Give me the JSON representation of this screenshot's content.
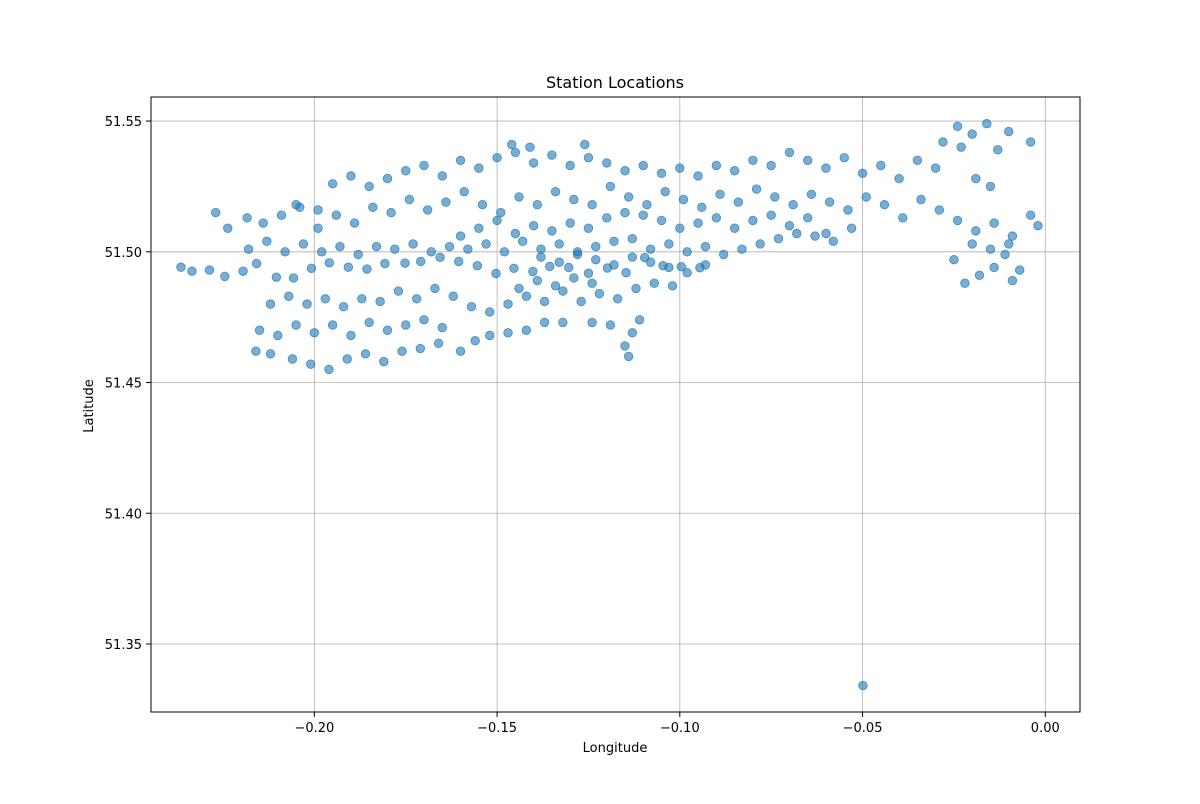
{
  "chart_data": {
    "type": "scatter",
    "title": "Station Locations",
    "xlabel": "Longitude",
    "ylabel": "Latitude",
    "xlim": [
      -0.2447,
      0.0095
    ],
    "ylim": [
      51.324,
      51.5592
    ],
    "xticks": [
      -0.2,
      -0.15,
      -0.1,
      -0.05,
      0.0
    ],
    "xtick_labels": [
      "−0.20",
      "−0.15",
      "−0.10",
      "−0.05",
      "0.00"
    ],
    "yticks": [
      51.35,
      51.4,
      51.45,
      51.5,
      51.55
    ],
    "ytick_labels": [
      "51.35",
      "51.40",
      "51.45",
      "51.50",
      "51.55"
    ],
    "grid": true,
    "marker_color": "#1f77b4",
    "marker_alpha": 0.6,
    "points": [
      [
        -0.0499,
        51.3341
      ],
      [
        -0.2365,
        51.4941
      ],
      [
        -0.2335,
        51.4926
      ],
      [
        -0.2287,
        51.493
      ],
      [
        -0.2245,
        51.4906
      ],
      [
        -0.2195,
        51.4926
      ],
      [
        -0.2158,
        51.4955
      ],
      [
        -0.2104,
        51.4903
      ],
      [
        -0.2057,
        51.49
      ],
      [
        -0.2008,
        51.4937
      ],
      [
        -0.1959,
        51.4958
      ],
      [
        -0.1907,
        51.4941
      ],
      [
        -0.1856,
        51.4934
      ],
      [
        -0.1807,
        51.4955
      ],
      [
        -0.1752,
        51.4957
      ],
      [
        -0.1709,
        51.4963
      ],
      [
        -0.1656,
        51.4979
      ],
      [
        -0.1605,
        51.4963
      ],
      [
        -0.1554,
        51.4947
      ],
      [
        -0.1503,
        51.4917
      ],
      [
        -0.1454,
        51.4937
      ],
      [
        -0.1402,
        51.4925
      ],
      [
        -0.1356,
        51.4944
      ],
      [
        -0.1304,
        51.494
      ],
      [
        -0.125,
        51.4918
      ],
      [
        -0.1198,
        51.4938
      ],
      [
        -0.1147,
        51.492
      ],
      [
        -0.1096,
        51.4978
      ],
      [
        -0.1046,
        51.4947
      ],
      [
        -0.0996,
        51.4943
      ],
      [
        -0.0945,
        51.4939
      ],
      [
        -0.227,
        51.515
      ],
      [
        -0.2237,
        51.509
      ],
      [
        -0.2184,
        51.513
      ],
      [
        -0.214,
        51.511
      ],
      [
        -0.209,
        51.514
      ],
      [
        -0.204,
        51.517
      ],
      [
        -0.199,
        51.509
      ],
      [
        -0.194,
        51.514
      ],
      [
        -0.189,
        51.511
      ],
      [
        -0.184,
        51.517
      ],
      [
        -0.179,
        51.515
      ],
      [
        -0.174,
        51.52
      ],
      [
        -0.169,
        51.516
      ],
      [
        -0.164,
        51.519
      ],
      [
        -0.159,
        51.523
      ],
      [
        -0.154,
        51.518
      ],
      [
        -0.149,
        51.515
      ],
      [
        -0.144,
        51.521
      ],
      [
        -0.139,
        51.518
      ],
      [
        -0.134,
        51.523
      ],
      [
        -0.129,
        51.52
      ],
      [
        -0.124,
        51.518
      ],
      [
        -0.119,
        51.525
      ],
      [
        -0.114,
        51.521
      ],
      [
        -0.109,
        51.518
      ],
      [
        -0.104,
        51.523
      ],
      [
        -0.099,
        51.52
      ],
      [
        -0.094,
        51.517
      ],
      [
        -0.089,
        51.522
      ],
      [
        -0.084,
        51.519
      ],
      [
        -0.079,
        51.524
      ],
      [
        -0.074,
        51.521
      ],
      [
        -0.069,
        51.518
      ],
      [
        -0.064,
        51.522
      ],
      [
        -0.059,
        51.519
      ],
      [
        -0.054,
        51.516
      ],
      [
        -0.049,
        51.521
      ],
      [
        -0.044,
        51.518
      ],
      [
        -0.039,
        51.513
      ],
      [
        -0.034,
        51.52
      ],
      [
        -0.029,
        51.516
      ],
      [
        -0.024,
        51.512
      ],
      [
        -0.019,
        51.508
      ],
      [
        -0.014,
        51.511
      ],
      [
        -0.009,
        51.506
      ],
      [
        -0.004,
        51.514
      ],
      [
        -0.002,
        51.51
      ],
      [
        -0.216,
        51.462
      ],
      [
        -0.212,
        51.461
      ],
      [
        -0.206,
        51.459
      ],
      [
        -0.201,
        51.457
      ],
      [
        -0.196,
        51.455
      ],
      [
        -0.191,
        51.459
      ],
      [
        -0.186,
        51.461
      ],
      [
        -0.181,
        51.458
      ],
      [
        -0.176,
        51.462
      ],
      [
        -0.171,
        51.463
      ],
      [
        -0.166,
        51.465
      ],
      [
        -0.16,
        51.462
      ],
      [
        -0.156,
        51.466
      ],
      [
        -0.152,
        51.468
      ],
      [
        -0.147,
        51.469
      ],
      [
        -0.142,
        51.47
      ],
      [
        -0.137,
        51.473
      ],
      [
        -0.132,
        51.473
      ],
      [
        -0.124,
        51.473
      ],
      [
        -0.119,
        51.472
      ],
      [
        -0.115,
        51.464
      ],
      [
        -0.114,
        51.46
      ],
      [
        -0.113,
        51.469
      ],
      [
        -0.111,
        51.474
      ],
      [
        -0.215,
        51.47
      ],
      [
        -0.21,
        51.468
      ],
      [
        -0.205,
        51.472
      ],
      [
        -0.2,
        51.469
      ],
      [
        -0.195,
        51.472
      ],
      [
        -0.19,
        51.468
      ],
      [
        -0.185,
        51.473
      ],
      [
        -0.18,
        51.47
      ],
      [
        -0.175,
        51.472
      ],
      [
        -0.17,
        51.474
      ],
      [
        -0.165,
        51.471
      ],
      [
        -0.212,
        51.48
      ],
      [
        -0.207,
        51.483
      ],
      [
        -0.202,
        51.48
      ],
      [
        -0.197,
        51.482
      ],
      [
        -0.192,
        51.479
      ],
      [
        -0.187,
        51.482
      ],
      [
        -0.182,
        51.481
      ],
      [
        -0.177,
        51.485
      ],
      [
        -0.172,
        51.482
      ],
      [
        -0.167,
        51.486
      ],
      [
        -0.162,
        51.483
      ],
      [
        -0.157,
        51.479
      ],
      [
        -0.152,
        51.477
      ],
      [
        -0.147,
        51.48
      ],
      [
        -0.142,
        51.483
      ],
      [
        -0.137,
        51.481
      ],
      [
        -0.132,
        51.485
      ],
      [
        -0.127,
        51.481
      ],
      [
        -0.122,
        51.484
      ],
      [
        -0.117,
        51.482
      ],
      [
        -0.112,
        51.486
      ],
      [
        -0.107,
        51.488
      ],
      [
        -0.102,
        51.487
      ],
      [
        -0.218,
        51.501
      ],
      [
        -0.213,
        51.504
      ],
      [
        -0.208,
        51.5
      ],
      [
        -0.203,
        51.503
      ],
      [
        -0.198,
        51.5
      ],
      [
        -0.193,
        51.502
      ],
      [
        -0.188,
        51.499
      ],
      [
        -0.183,
        51.502
      ],
      [
        -0.178,
        51.501
      ],
      [
        -0.173,
        51.503
      ],
      [
        -0.168,
        51.5
      ],
      [
        -0.163,
        51.502
      ],
      [
        -0.158,
        51.501
      ],
      [
        -0.153,
        51.503
      ],
      [
        -0.148,
        51.5
      ],
      [
        -0.143,
        51.504
      ],
      [
        -0.138,
        51.501
      ],
      [
        -0.133,
        51.503
      ],
      [
        -0.128,
        51.5
      ],
      [
        -0.123,
        51.502
      ],
      [
        -0.118,
        51.504
      ],
      [
        -0.113,
        51.505
      ],
      [
        -0.108,
        51.501
      ],
      [
        -0.103,
        51.503
      ],
      [
        -0.098,
        51.5
      ],
      [
        -0.093,
        51.502
      ],
      [
        -0.088,
        51.499
      ],
      [
        -0.083,
        51.501
      ],
      [
        -0.078,
        51.503
      ],
      [
        -0.073,
        51.505
      ],
      [
        -0.068,
        51.507
      ],
      [
        -0.063,
        51.506
      ],
      [
        -0.058,
        51.504
      ],
      [
        -0.053,
        51.509
      ],
      [
        -0.195,
        51.526
      ],
      [
        -0.19,
        51.529
      ],
      [
        -0.185,
        51.525
      ],
      [
        -0.18,
        51.528
      ],
      [
        -0.175,
        51.531
      ],
      [
        -0.17,
        51.533
      ],
      [
        -0.165,
        51.529
      ],
      [
        -0.16,
        51.535
      ],
      [
        -0.155,
        51.532
      ],
      [
        -0.15,
        51.536
      ],
      [
        -0.145,
        51.538
      ],
      [
        -0.14,
        51.534
      ],
      [
        -0.135,
        51.537
      ],
      [
        -0.13,
        51.533
      ],
      [
        -0.125,
        51.536
      ],
      [
        -0.12,
        51.534
      ],
      [
        -0.115,
        51.531
      ],
      [
        -0.11,
        51.533
      ],
      [
        -0.105,
        51.53
      ],
      [
        -0.1,
        51.532
      ],
      [
        -0.095,
        51.529
      ],
      [
        -0.09,
        51.533
      ],
      [
        -0.085,
        51.531
      ],
      [
        -0.08,
        51.535
      ],
      [
        -0.075,
        51.533
      ],
      [
        -0.07,
        51.538
      ],
      [
        -0.065,
        51.535
      ],
      [
        -0.06,
        51.532
      ],
      [
        -0.055,
        51.536
      ],
      [
        -0.146,
        51.541
      ],
      [
        -0.141,
        51.54
      ],
      [
        -0.126,
        51.541
      ],
      [
        -0.05,
        51.53
      ],
      [
        -0.045,
        51.533
      ],
      [
        -0.04,
        51.528
      ],
      [
        -0.035,
        51.535
      ],
      [
        -0.03,
        51.532
      ],
      [
        -0.028,
        51.542
      ],
      [
        -0.024,
        51.548
      ],
      [
        -0.02,
        51.545
      ],
      [
        -0.016,
        51.549
      ],
      [
        -0.013,
        51.539
      ],
      [
        -0.01,
        51.546
      ],
      [
        -0.004,
        51.542
      ],
      [
        -0.023,
        51.54
      ],
      [
        -0.019,
        51.528
      ],
      [
        -0.015,
        51.525
      ],
      [
        -0.025,
        51.497
      ],
      [
        -0.022,
        51.488
      ],
      [
        -0.018,
        51.491
      ],
      [
        -0.014,
        51.494
      ],
      [
        -0.011,
        51.499
      ],
      [
        -0.009,
        51.489
      ],
      [
        -0.007,
        51.493
      ],
      [
        -0.02,
        51.503
      ],
      [
        -0.015,
        51.501
      ],
      [
        -0.01,
        51.503
      ],
      [
        -0.205,
        51.518
      ],
      [
        -0.199,
        51.516
      ],
      [
        -0.16,
        51.506
      ],
      [
        -0.155,
        51.509
      ],
      [
        -0.15,
        51.512
      ],
      [
        -0.145,
        51.507
      ],
      [
        -0.14,
        51.51
      ],
      [
        -0.135,
        51.508
      ],
      [
        -0.13,
        51.511
      ],
      [
        -0.125,
        51.509
      ],
      [
        -0.12,
        51.513
      ],
      [
        -0.115,
        51.515
      ],
      [
        -0.11,
        51.514
      ],
      [
        -0.105,
        51.512
      ],
      [
        -0.1,
        51.509
      ],
      [
        -0.095,
        51.511
      ],
      [
        -0.09,
        51.513
      ],
      [
        -0.085,
        51.509
      ],
      [
        -0.08,
        51.512
      ],
      [
        -0.075,
        51.514
      ],
      [
        -0.07,
        51.51
      ],
      [
        -0.065,
        51.513
      ],
      [
        -0.06,
        51.507
      ],
      [
        -0.138,
        51.498
      ],
      [
        -0.133,
        51.496
      ],
      [
        -0.128,
        51.499
      ],
      [
        -0.123,
        51.497
      ],
      [
        -0.118,
        51.495
      ],
      [
        -0.113,
        51.498
      ],
      [
        -0.108,
        51.496
      ],
      [
        -0.103,
        51.494
      ],
      [
        -0.098,
        51.492
      ],
      [
        -0.093,
        51.495
      ],
      [
        -0.144,
        51.486
      ],
      [
        -0.139,
        51.489
      ],
      [
        -0.134,
        51.487
      ],
      [
        -0.129,
        51.49
      ],
      [
        -0.124,
        51.488
      ]
    ]
  }
}
